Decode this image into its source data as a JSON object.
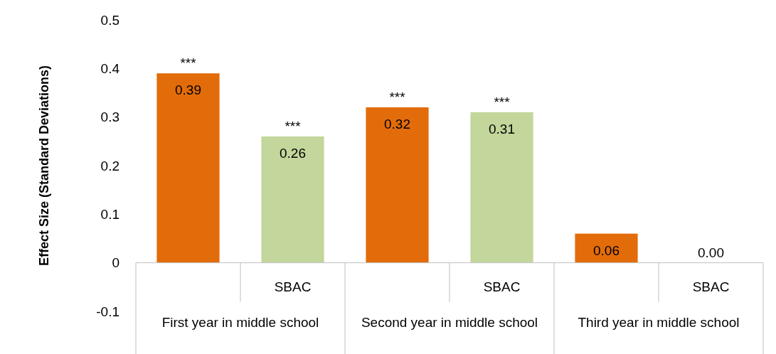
{
  "chart_data": {
    "type": "bar",
    "ylabel": "Effect Size (Standard Deviations)",
    "categories": [
      null,
      "SBAC",
      null,
      "SBAC",
      null,
      "SBAC"
    ],
    "values": [
      0.39,
      0.26,
      0.32,
      0.31,
      0.06,
      0
    ],
    "colors": [
      "#e36c0a",
      "#c3d69b",
      "#e36c0a",
      "#c3d69b",
      "#e36c0a",
      "#c3d69b"
    ],
    "value_labels": [
      "0.39",
      "0.26",
      "0.32",
      "0.31",
      "0.06",
      "0.00"
    ],
    "ylim": [
      -0.1,
      0.5
    ],
    "yticks": [
      -0.1,
      0,
      0.1,
      0.2,
      0.3,
      0.4,
      0.5
    ],
    "annotations": [
      "First year in middle school",
      "Second year in middle school",
      "Third year in middle school",
      "***",
      "***",
      "***",
      "***"
    ]
  }
}
